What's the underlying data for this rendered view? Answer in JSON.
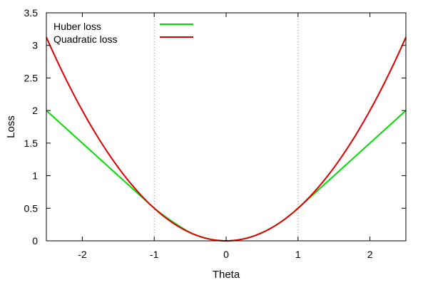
{
  "chart_data": {
    "type": "line",
    "xlabel": "Theta",
    "ylabel": "Loss",
    "xlim": [
      -2.5,
      2.5
    ],
    "ylim": [
      0,
      3.5
    ],
    "x_ticks": [
      -2,
      -1,
      0,
      1,
      2
    ],
    "x_tick_labels": [
      "-2",
      "-1",
      "0",
      "1",
      "2"
    ],
    "y_ticks": [
      0,
      0.5,
      1,
      1.5,
      2,
      2.5,
      3,
      3.5
    ],
    "y_tick_labels": [
      "0",
      "0.5",
      "1",
      "1.5",
      "2",
      "2.5",
      "3",
      "3.5"
    ],
    "vertical_reference_lines": [
      -1,
      1
    ],
    "grid": false,
    "legend_position": "top-left",
    "series": [
      {
        "name": "Huber loss",
        "color": "#00dd00",
        "x": [
          -2.5,
          -2,
          -1.5,
          -1,
          -0.5,
          0,
          0.5,
          1,
          1.5,
          2,
          2.5
        ],
        "values": [
          2.0,
          1.5,
          1.0,
          0.5,
          0.125,
          0,
          0.125,
          0.5,
          1.0,
          1.5,
          2.0
        ]
      },
      {
        "name": "Quadratic loss",
        "color": "#dd0000",
        "x": [
          -2.5,
          -2,
          -1.5,
          -1,
          -0.5,
          0,
          0.5,
          1,
          1.5,
          2,
          2.5
        ],
        "values": [
          3.125,
          2.0,
          1.125,
          0.5,
          0.125,
          0,
          0.125,
          0.5,
          1.125,
          2.0,
          3.125
        ]
      }
    ]
  }
}
